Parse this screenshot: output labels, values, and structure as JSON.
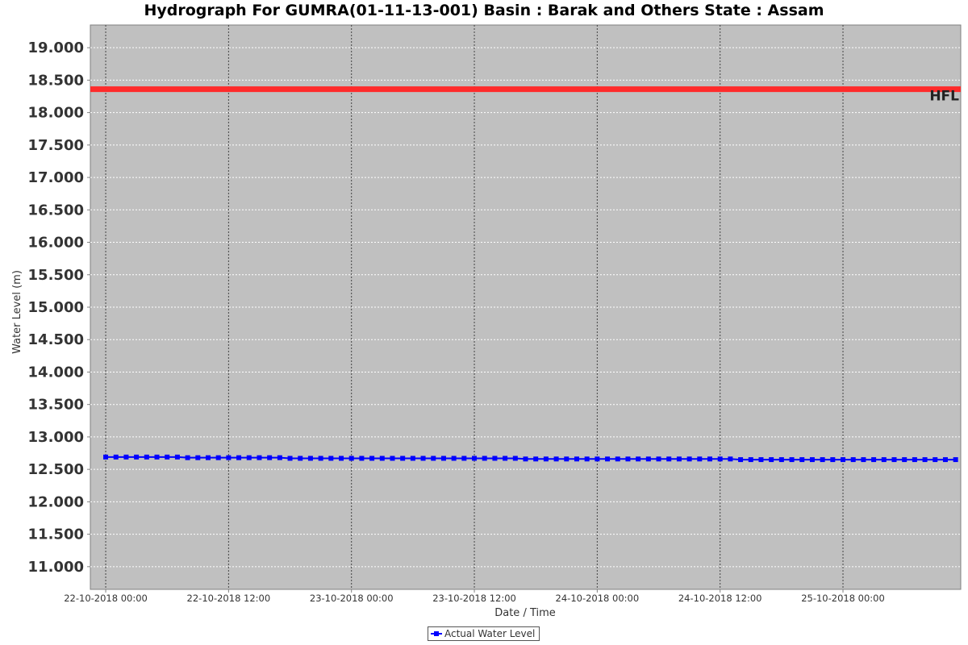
{
  "chart_data": {
    "type": "line",
    "title": "Hydrograph For GUMRA(01-11-13-001) Basin : Barak and Others State : Assam",
    "xlabel": "Date / Time",
    "ylabel": "Water Level (m)",
    "ylim": [
      10.65,
      19.35
    ],
    "y_ticks": [
      "11.000",
      "11.500",
      "12.000",
      "12.500",
      "13.000",
      "13.500",
      "14.000",
      "14.500",
      "15.000",
      "15.500",
      "16.000",
      "16.500",
      "17.000",
      "17.500",
      "18.000",
      "18.500",
      "19.000"
    ],
    "x_ticks": [
      "22-10-2018 00:00",
      "22-10-2018 12:00",
      "23-10-2018 00:00",
      "23-10-2018 12:00",
      "24-10-2018 00:00",
      "24-10-2018 12:00",
      "25-10-2018 00:00"
    ],
    "x_range": [
      "21-10-2018 22:30",
      "25-10-2018 11:30"
    ],
    "grid": true,
    "legend_position": "bottom",
    "reference_lines": [
      {
        "label": "HFL",
        "value": 18.36,
        "color": "#ff2a2a"
      }
    ],
    "series": [
      {
        "name": "Actual Water Level",
        "color": "#0000ff",
        "marker": "square",
        "x_start": "22-10-2018 00:00",
        "interval_hours": 1,
        "values": [
          12.69,
          12.69,
          12.69,
          12.69,
          12.69,
          12.69,
          12.69,
          12.69,
          12.68,
          12.68,
          12.68,
          12.68,
          12.68,
          12.68,
          12.68,
          12.68,
          12.68,
          12.68,
          12.67,
          12.67,
          12.67,
          12.67,
          12.67,
          12.67,
          12.67,
          12.67,
          12.67,
          12.67,
          12.67,
          12.67,
          12.67,
          12.67,
          12.67,
          12.67,
          12.67,
          12.67,
          12.67,
          12.67,
          12.67,
          12.67,
          12.67,
          12.66,
          12.66,
          12.66,
          12.66,
          12.66,
          12.66,
          12.66,
          12.66,
          12.66,
          12.66,
          12.66,
          12.66,
          12.66,
          12.66,
          12.66,
          12.66,
          12.66,
          12.66,
          12.66,
          12.66,
          12.66,
          12.65,
          12.65,
          12.65,
          12.65,
          12.65,
          12.65,
          12.65,
          12.65,
          12.65,
          12.65,
          12.65,
          12.65,
          12.65,
          12.65,
          12.65,
          12.65,
          12.65,
          12.65,
          12.65,
          12.65,
          12.65,
          12.65
        ]
      }
    ],
    "plot_background": "#c0c0c0"
  }
}
